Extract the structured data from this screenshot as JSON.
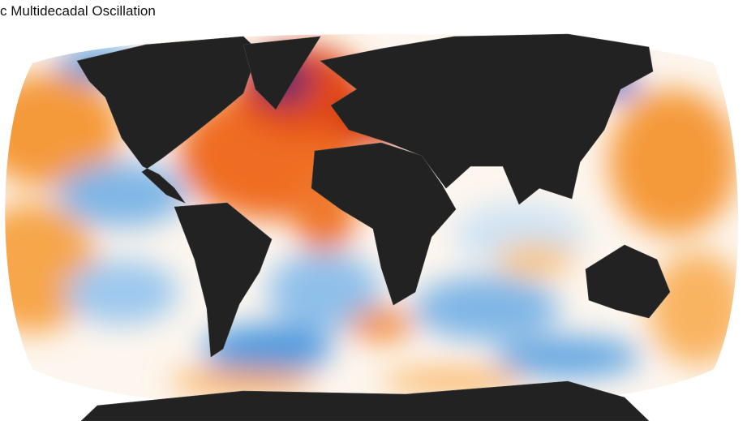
{
  "title": "c Multidecadal Oscillation"
}
